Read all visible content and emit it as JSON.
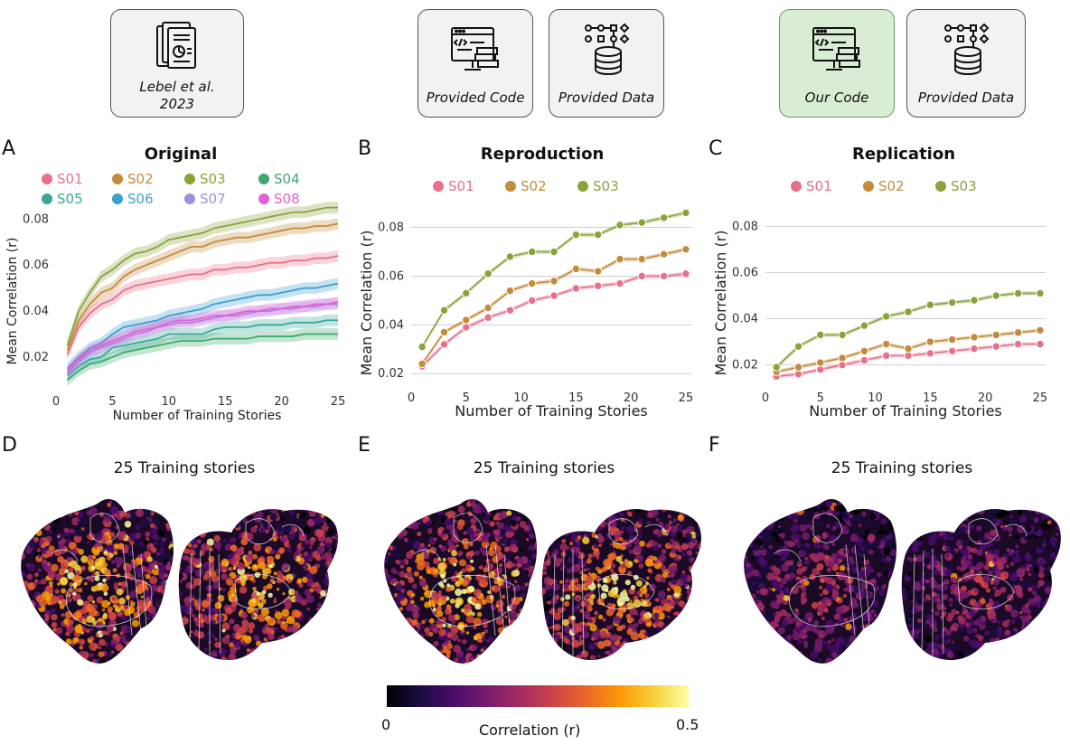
{
  "cards": [
    {
      "id": "paper",
      "label": "Lebel et al.\n2023",
      "label_line1": "Lebel et al.",
      "label_line2": "2023",
      "icon": "paper-report-icon",
      "style": "gray"
    },
    {
      "id": "provided-code-1",
      "label": "Provided Code",
      "icon": "code-monitor-icon",
      "style": "gray"
    },
    {
      "id": "provided-data-1",
      "label": "Provided Data",
      "icon": "database-icon",
      "style": "gray"
    },
    {
      "id": "our-code",
      "label": "Our Code",
      "icon": "code-monitor-icon",
      "style": "green"
    },
    {
      "id": "provided-data-2",
      "label": "Provided Data",
      "icon": "database-icon",
      "style": "gray"
    }
  ],
  "panel_letters": {
    "A": "A",
    "B": "B",
    "C": "C",
    "D": "D",
    "E": "E",
    "F": "F"
  },
  "colors": {
    "S01": "#e8708a",
    "S02": "#c38b3a",
    "S03": "#8aa339",
    "S04": "#3da86a",
    "S05": "#39a89a",
    "S06": "#3aa0cf",
    "S07": "#9d8fe0",
    "S08": "#e060d6"
  },
  "chart_data": [
    {
      "id": "A",
      "type": "line",
      "title": "Original",
      "xlabel": "Number of Training Stories",
      "ylabel": "Mean Correlation (r)",
      "xlim": [
        0,
        25
      ],
      "ylim": [
        0.007,
        0.088
      ],
      "xticks": [
        "0",
        "5",
        "10",
        "15",
        "20",
        "25"
      ],
      "yticks": [
        "0.02",
        "0.04",
        "0.06",
        "0.08"
      ],
      "legend": [
        "S01",
        "S02",
        "S03",
        "S04",
        "S05",
        "S06",
        "S07",
        "S08"
      ],
      "x": [
        1,
        2,
        3,
        4,
        5,
        6,
        7,
        8,
        9,
        10,
        11,
        12,
        13,
        14,
        15,
        16,
        17,
        18,
        19,
        20,
        21,
        22,
        23,
        24,
        25
      ],
      "series": [
        {
          "name": "S01",
          "values": [
            0.021,
            0.033,
            0.039,
            0.043,
            0.045,
            0.049,
            0.051,
            0.052,
            0.053,
            0.054,
            0.055,
            0.056,
            0.056,
            0.058,
            0.058,
            0.059,
            0.059,
            0.06,
            0.061,
            0.061,
            0.062,
            0.062,
            0.063,
            0.063,
            0.064
          ]
        },
        {
          "name": "S02",
          "values": [
            0.023,
            0.036,
            0.043,
            0.048,
            0.05,
            0.055,
            0.058,
            0.06,
            0.062,
            0.064,
            0.066,
            0.068,
            0.068,
            0.07,
            0.071,
            0.072,
            0.072,
            0.073,
            0.074,
            0.075,
            0.076,
            0.076,
            0.077,
            0.077,
            0.078
          ]
        },
        {
          "name": "S03",
          "values": [
            0.025,
            0.04,
            0.048,
            0.055,
            0.058,
            0.062,
            0.065,
            0.066,
            0.068,
            0.071,
            0.072,
            0.073,
            0.074,
            0.076,
            0.077,
            0.078,
            0.079,
            0.08,
            0.081,
            0.082,
            0.083,
            0.083,
            0.084,
            0.085,
            0.085
          ]
        },
        {
          "name": "S04",
          "values": [
            0.01,
            0.014,
            0.017,
            0.018,
            0.02,
            0.022,
            0.023,
            0.024,
            0.025,
            0.026,
            0.027,
            0.027,
            0.027,
            0.028,
            0.028,
            0.028,
            0.028,
            0.029,
            0.029,
            0.029,
            0.029,
            0.03,
            0.03,
            0.03,
            0.03
          ]
        },
        {
          "name": "S05",
          "values": [
            0.012,
            0.016,
            0.019,
            0.02,
            0.024,
            0.025,
            0.026,
            0.027,
            0.028,
            0.03,
            0.03,
            0.03,
            0.03,
            0.032,
            0.033,
            0.033,
            0.033,
            0.034,
            0.034,
            0.034,
            0.035,
            0.035,
            0.035,
            0.036,
            0.036
          ]
        },
        {
          "name": "S06",
          "values": [
            0.015,
            0.02,
            0.024,
            0.026,
            0.03,
            0.033,
            0.034,
            0.035,
            0.036,
            0.038,
            0.039,
            0.04,
            0.041,
            0.043,
            0.044,
            0.045,
            0.046,
            0.047,
            0.047,
            0.048,
            0.049,
            0.05,
            0.05,
            0.051,
            0.052
          ]
        },
        {
          "name": "S07",
          "values": [
            0.013,
            0.018,
            0.022,
            0.024,
            0.026,
            0.028,
            0.03,
            0.031,
            0.033,
            0.034,
            0.035,
            0.035,
            0.036,
            0.037,
            0.038,
            0.038,
            0.039,
            0.04,
            0.04,
            0.041,
            0.041,
            0.042,
            0.042,
            0.043,
            0.043
          ]
        },
        {
          "name": "S08",
          "values": [
            0.014,
            0.019,
            0.023,
            0.025,
            0.027,
            0.029,
            0.031,
            0.032,
            0.033,
            0.035,
            0.036,
            0.036,
            0.037,
            0.038,
            0.038,
            0.039,
            0.04,
            0.04,
            0.041,
            0.041,
            0.042,
            0.042,
            0.043,
            0.043,
            0.044
          ]
        }
      ]
    },
    {
      "id": "B",
      "type": "line",
      "title": "Reproduction",
      "xlabel": "Number of Training Stories",
      "ylabel": "Mean Correlation (r)",
      "xlim": [
        0,
        25.5
      ],
      "ylim": [
        0.016,
        0.088
      ],
      "xticks": [
        "0",
        "5",
        "10",
        "15",
        "20",
        "25"
      ],
      "yticks": [
        "0.02",
        "0.04",
        "0.06",
        "0.08"
      ],
      "legend": [
        "S01",
        "S02",
        "S03"
      ],
      "x": [
        1,
        3,
        5,
        7,
        9,
        11,
        13,
        15,
        17,
        19,
        21,
        23,
        25
      ],
      "series": [
        {
          "name": "S01",
          "values": [
            0.023,
            0.032,
            0.039,
            0.043,
            0.046,
            0.05,
            0.052,
            0.055,
            0.056,
            0.057,
            0.06,
            0.06,
            0.061
          ]
        },
        {
          "name": "S02",
          "values": [
            0.024,
            0.037,
            0.042,
            0.047,
            0.054,
            0.057,
            0.058,
            0.063,
            0.062,
            0.067,
            0.067,
            0.069,
            0.071
          ]
        },
        {
          "name": "S03",
          "values": [
            0.031,
            0.046,
            0.053,
            0.061,
            0.068,
            0.07,
            0.07,
            0.077,
            0.077,
            0.081,
            0.082,
            0.084,
            0.086
          ]
        }
      ]
    },
    {
      "id": "C",
      "type": "line",
      "title": "Replication",
      "xlabel": "Number of Training Stories",
      "ylabel": "Mean Correlation (r)",
      "xlim": [
        0,
        25.5
      ],
      "ylim": [
        0.012,
        0.088
      ],
      "xticks": [
        "0",
        "5",
        "10",
        "15",
        "20",
        "25"
      ],
      "yticks": [
        "0.02",
        "0.04",
        "0.06",
        "0.08"
      ],
      "legend": [
        "S01",
        "S02",
        "S03"
      ],
      "x": [
        1,
        3,
        5,
        7,
        9,
        11,
        13,
        15,
        17,
        19,
        21,
        23,
        25
      ],
      "series": [
        {
          "name": "S01",
          "values": [
            0.015,
            0.016,
            0.018,
            0.02,
            0.022,
            0.024,
            0.024,
            0.025,
            0.026,
            0.027,
            0.028,
            0.029,
            0.029
          ]
        },
        {
          "name": "S02",
          "values": [
            0.017,
            0.019,
            0.021,
            0.023,
            0.026,
            0.029,
            0.027,
            0.03,
            0.031,
            0.032,
            0.033,
            0.034,
            0.035
          ]
        },
        {
          "name": "S03",
          "values": [
            0.019,
            0.028,
            0.033,
            0.033,
            0.037,
            0.041,
            0.043,
            0.046,
            0.047,
            0.048,
            0.05,
            0.051,
            0.051
          ]
        }
      ]
    }
  ],
  "brains": [
    {
      "id": "D",
      "title": "25 Training stories",
      "intensity": 1.0
    },
    {
      "id": "E",
      "title": "25 Training stories",
      "intensity": 1.0
    },
    {
      "id": "F",
      "title": "25 Training stories",
      "intensity": 0.6
    }
  ],
  "colorbar": {
    "min_label": "0",
    "max_label": "0.5",
    "label": "Correlation (r)",
    "colormap": "inferno"
  }
}
